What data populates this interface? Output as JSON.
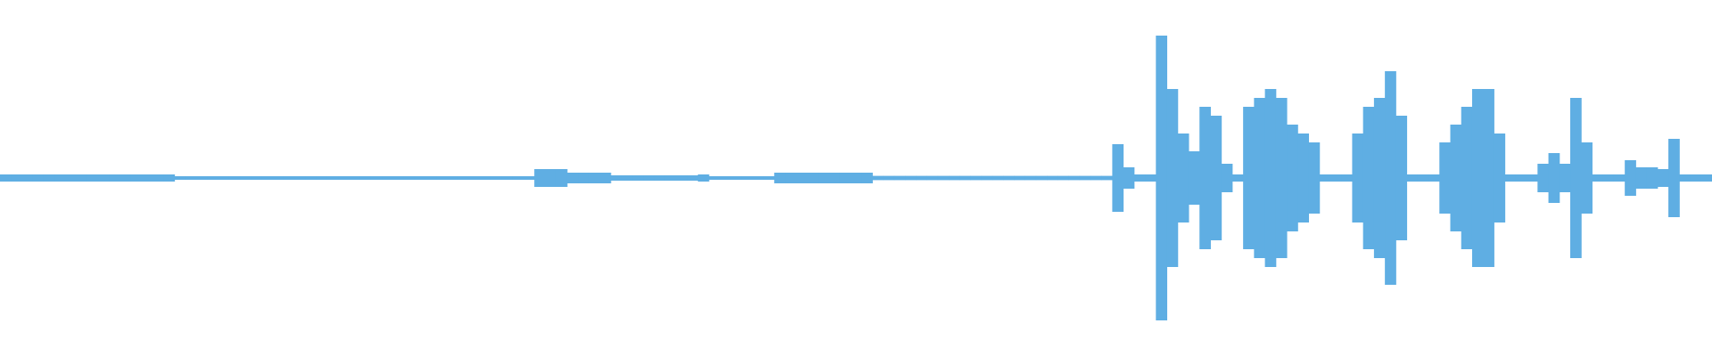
{
  "chart_data": {
    "type": "waveform",
    "color": "#5faee3",
    "ylim": [
      -1,
      1
    ],
    "values": [
      0.02,
      0.02,
      0.02,
      0.02,
      0.02,
      0.02,
      0.02,
      0.02,
      0.02,
      0.02,
      0.02,
      0.02,
      0.02,
      0.02,
      0.02,
      0.02,
      0.01,
      0.01,
      0.01,
      0.01,
      0.01,
      0.01,
      0.01,
      0.01,
      0.01,
      0.01,
      0.01,
      0.01,
      0.01,
      0.01,
      0.01,
      0.01,
      0.01,
      0.01,
      0.01,
      0.01,
      0.01,
      0.01,
      0.01,
      0.01,
      0.01,
      0.01,
      0.01,
      0.01,
      0.01,
      0.01,
      0.01,
      0.01,
      0.01,
      0.05,
      0.05,
      0.05,
      0.03,
      0.03,
      0.03,
      0.03,
      0.015,
      0.015,
      0.015,
      0.015,
      0.015,
      0.015,
      0.015,
      0.015,
      0.02,
      0.01,
      0.01,
      0.01,
      0.01,
      0.01,
      0.01,
      0.03,
      0.03,
      0.03,
      0.03,
      0.03,
      0.03,
      0.03,
      0.03,
      0.03,
      0.012,
      0.012,
      0.012,
      0.012,
      0.012,
      0.012,
      0.012,
      0.012,
      0.012,
      0.012,
      0.012,
      0.012,
      0.012,
      0.012,
      0.012,
      0.012,
      0.012,
      0.012,
      0.012,
      0.012,
      0.012,
      0.012,
      0.19,
      0.06,
      0.02,
      0.02,
      0.8,
      0.5,
      0.25,
      0.15,
      0.4,
      0.35,
      0.08,
      0.02,
      0.4,
      0.45,
      0.5,
      0.45,
      0.3,
      0.25,
      0.2,
      0.02,
      0.02,
      0.02,
      0.25,
      0.4,
      0.45,
      0.6,
      0.35,
      0.02,
      0.02,
      0.02,
      0.2,
      0.3,
      0.4,
      0.5,
      0.5,
      0.25,
      0.02,
      0.02,
      0.02,
      0.08,
      0.14,
      0.08,
      0.45,
      0.2,
      0.02,
      0.02,
      0.02,
      0.1,
      0.06,
      0.06,
      0.05,
      0.22,
      0.02,
      0.02,
      0.02
    ]
  }
}
